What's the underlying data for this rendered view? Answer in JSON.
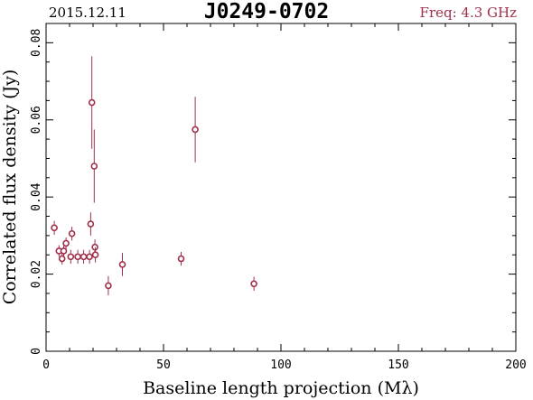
{
  "header": {
    "date": "2015.12.11",
    "source": "J0249-0702",
    "frequency": "Freq: 4.3 GHz"
  },
  "colors": {
    "marker": "#a0304a",
    "axis": "#000000"
  },
  "chart_data": {
    "type": "scatter",
    "xlabel": "Baseline length projection (Mλ)",
    "ylabel": "Correlated flux density (Jy)",
    "xlim": [
      0,
      200
    ],
    "ylim": [
      0,
      0.085
    ],
    "x_ticks": [
      0,
      50,
      100,
      150,
      200
    ],
    "x_tick_labels": [
      "0",
      "50",
      "100",
      "150",
      "200"
    ],
    "y_ticks": [
      0,
      0.02,
      0.04,
      0.06,
      0.08
    ],
    "y_tick_labels": [
      "0",
      "0.02",
      "0.04",
      "0.06",
      "0.08"
    ],
    "grid": false,
    "points": [
      {
        "x": 3.5,
        "y": 0.032,
        "err": 0.0018
      },
      {
        "x": 5.5,
        "y": 0.026,
        "err": 0.0015
      },
      {
        "x": 6.8,
        "y": 0.024,
        "err": 0.0015
      },
      {
        "x": 7.5,
        "y": 0.026,
        "err": 0.0015
      },
      {
        "x": 8.5,
        "y": 0.028,
        "err": 0.0015
      },
      {
        "x": 10.5,
        "y": 0.0245,
        "err": 0.0018
      },
      {
        "x": 11.0,
        "y": 0.0305,
        "err": 0.0018
      },
      {
        "x": 13.5,
        "y": 0.0245,
        "err": 0.0018
      },
      {
        "x": 16.0,
        "y": 0.0245,
        "err": 0.0018
      },
      {
        "x": 18.5,
        "y": 0.0245,
        "err": 0.0018
      },
      {
        "x": 19.0,
        "y": 0.033,
        "err": 0.003
      },
      {
        "x": 19.5,
        "y": 0.0645,
        "err": 0.012
      },
      {
        "x": 20.5,
        "y": 0.048,
        "err": 0.0095
      },
      {
        "x": 20.8,
        "y": 0.027,
        "err": 0.002
      },
      {
        "x": 21.0,
        "y": 0.025,
        "err": 0.002
      },
      {
        "x": 26.5,
        "y": 0.017,
        "err": 0.0025
      },
      {
        "x": 32.5,
        "y": 0.0225,
        "err": 0.003
      },
      {
        "x": 57.5,
        "y": 0.024,
        "err": 0.0018
      },
      {
        "x": 63.5,
        "y": 0.0575,
        "err": 0.0085
      },
      {
        "x": 88.5,
        "y": 0.0175,
        "err": 0.0018
      }
    ]
  }
}
